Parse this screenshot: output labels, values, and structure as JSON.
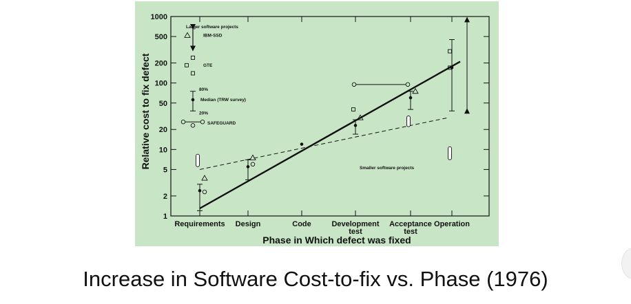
{
  "caption": "Increase in Software Cost-to-fix vs. Phase (1976)",
  "chart_data": {
    "type": "scatter",
    "title": "",
    "xlabel": "Phase in Which defect was fixed",
    "ylabel": "Relative cost to fix defect",
    "yscale": "log",
    "ylim": [
      1,
      1000
    ],
    "yticks": [
      1,
      2,
      5,
      10,
      20,
      50,
      100,
      200,
      500,
      1000
    ],
    "categories": [
      [
        "Requirements"
      ],
      [
        "Design"
      ],
      [
        "Code"
      ],
      [
        "Development",
        "test"
      ],
      [
        "Acceptance",
        "test"
      ],
      [
        "Operation"
      ]
    ],
    "annotations": {
      "larger": "Larger software projects",
      "smaller": "Smaller software projects",
      "ibm": "IBM-SSD",
      "gte": "GTE",
      "p80": "80%",
      "median": "Median (TRW survey)",
      "p20": "20%",
      "safeguard": "SAFEGUARD"
    },
    "trend_lines": [
      {
        "style": "solid",
        "from": {
          "x": 0,
          "y": 1.3
        },
        "to": {
          "x": 5.2,
          "y": 210
        }
      },
      {
        "style": "dashed",
        "from": {
          "x": 0,
          "y": 5
        },
        "to": {
          "x": 4.9,
          "y": 30
        }
      }
    ],
    "median_points": [
      {
        "x": 0,
        "y": 2.4,
        "low": 1.2,
        "high": 3
      },
      {
        "x": 1,
        "y": 5.5,
        "low": 3.5,
        "high": 7
      },
      {
        "x": 2,
        "y": 12
      },
      {
        "x": 3,
        "y": 23,
        "low": 17,
        "high": 28
      },
      {
        "x": 4,
        "y": 60,
        "low": 40,
        "high": 75
      },
      {
        "x": 5,
        "y": 170,
        "low": 38,
        "high": 450
      }
    ],
    "ibm_ssd": [
      {
        "x": 0,
        "y": 3.7
      },
      {
        "x": 1,
        "y": 7.5
      },
      {
        "x": 3,
        "y": 30
      },
      {
        "x": 4,
        "y": 75
      }
    ],
    "gte": [
      {
        "x": 3,
        "y": 40
      },
      {
        "x": 5,
        "y": 300
      },
      {
        "x": 5,
        "y": 170
      }
    ],
    "safeguard": [
      {
        "x": 0,
        "y": 2.3
      },
      {
        "x": 1,
        "y": 6
      }
    ],
    "safeguard_range": {
      "x_from": 3,
      "x_to": 4,
      "y": 95
    },
    "smaller_project_ranges": [
      {
        "x": 0,
        "low": 5.5,
        "high": 8.5
      },
      {
        "x": 4,
        "low": 22,
        "high": 32
      },
      {
        "x": 5,
        "low": 7,
        "high": 11
      }
    ],
    "operation_range": {
      "x": 5,
      "low": 38,
      "high": 900
    }
  }
}
